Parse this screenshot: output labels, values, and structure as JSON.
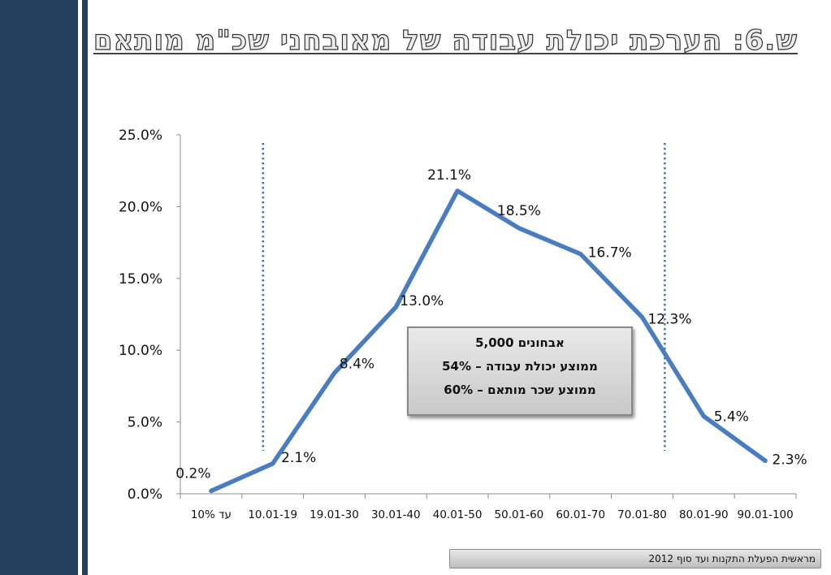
{
  "title": "ש.6: הערכת יכולת עבודה של מאובחני שכ\"מ מותאם",
  "info_box": {
    "line1": "אבחונים 5,000",
    "line2": "ממוצע יכולת עבודה – 54%",
    "line3": "ממוצע שכר מותאם – 60%"
  },
  "footer": "מראשית הפעלת התקנות ועד סוף 2012",
  "colors": {
    "sidebar": "#23405f",
    "line": "#4a7dbf",
    "dotted_marker": "#3f78b4"
  },
  "chart_data": {
    "type": "line",
    "title": "",
    "xlabel": "",
    "ylabel": "",
    "categories": [
      "עד 10%",
      "10.01-19",
      "19.01-30",
      "30.01-40",
      "40.01-50",
      "50.01-60",
      "60.01-70",
      "70.01-80",
      "80.01-90",
      "90.01-100"
    ],
    "series": [
      {
        "values": [
          0.2,
          2.1,
          8.4,
          13.0,
          21.1,
          18.5,
          16.7,
          12.3,
          5.4,
          2.3
        ],
        "labels": [
          "0.2%",
          "2.1%",
          "8.4%",
          "13.0%",
          "21.1%",
          "18.5%",
          "16.7%",
          "12.3%",
          "5.4%",
          "2.3%"
        ]
      }
    ],
    "ylim": [
      0,
      25
    ],
    "yticks": [
      0,
      5,
      10,
      15,
      20,
      25
    ],
    "ytick_labels": [
      "0.0%",
      "5.0%",
      "10.0%",
      "15.0%",
      "20.0%",
      "25.0%"
    ],
    "reference_lines_after_category_index": [
      1,
      8
    ],
    "grid": false,
    "legend": "none"
  }
}
